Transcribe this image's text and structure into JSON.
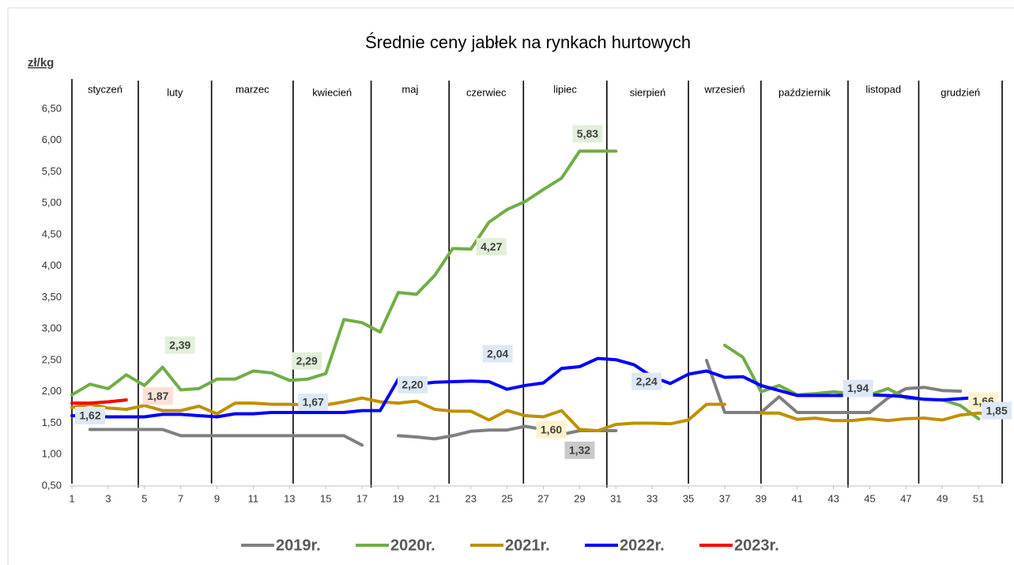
{
  "chart_data": {
    "type": "line",
    "title": "Średnie ceny jabłek na rynkach hurtowych",
    "y_label": "zł/kg",
    "months": [
      "styczeń",
      "luty",
      "marzec",
      "kwiecień",
      "maj",
      "czerwiec",
      "lipiec",
      "sierpień",
      "wrzesień",
      "październik",
      "listopad",
      "grudzień"
    ],
    "x": [
      1,
      2,
      3,
      4,
      5,
      6,
      7,
      8,
      9,
      10,
      11,
      12,
      13,
      14,
      15,
      16,
      17,
      18,
      19,
      20,
      21,
      22,
      23,
      24,
      25,
      26,
      27,
      28,
      29,
      30,
      31,
      32,
      33,
      34,
      35,
      36,
      37,
      38,
      39,
      40,
      41,
      42,
      43,
      44,
      45,
      46,
      47,
      48,
      49,
      50,
      51,
      52
    ],
    "xlim": [
      1,
      52.3
    ],
    "xticks": [
      1,
      3,
      5,
      7,
      9,
      11,
      13,
      15,
      17,
      19,
      21,
      23,
      25,
      27,
      29,
      31,
      33,
      35,
      37,
      39,
      41,
      43,
      45,
      47,
      49,
      51
    ],
    "ylim": [
      0.5,
      6.5
    ],
    "yticks": [
      {
        "value": 0.5,
        "label": "0,50"
      },
      {
        "value": 1,
        "label": "1,00"
      },
      {
        "value": 1.5,
        "label": "1,50"
      },
      {
        "value": 2,
        "label": "2,00"
      },
      {
        "value": 2.5,
        "label": "2,50"
      },
      {
        "value": 3,
        "label": "3,00"
      },
      {
        "value": 3.5,
        "label": "3,50"
      },
      {
        "value": 4,
        "label": "4,00"
      },
      {
        "value": 4.5,
        "label": "4,50"
      },
      {
        "value": 5,
        "label": "5,00"
      },
      {
        "value": 5.5,
        "label": "5,50"
      },
      {
        "value": 6,
        "label": "6,00"
      },
      {
        "value": 6.5,
        "label": "6,50"
      }
    ],
    "legend": "bottom",
    "series": [
      {
        "name": "2019r.",
        "color": "#7f7f7f",
        "label_color": "#c9c9c9",
        "values": [
          null,
          1.4,
          1.4,
          1.4,
          1.4,
          1.4,
          1.3,
          1.3,
          1.3,
          1.3,
          1.3,
          1.3,
          1.3,
          1.3,
          1.3,
          1.3,
          1.15,
          null,
          1.3,
          1.28,
          1.25,
          1.3,
          1.37,
          1.39,
          1.39,
          1.45,
          1.4,
          1.32,
          1.38,
          1.38,
          1.38,
          null,
          null,
          null,
          null,
          2.5,
          1.67,
          1.67,
          1.67,
          1.92,
          1.67,
          1.67,
          1.67,
          1.67,
          1.67,
          1.9,
          2.05,
          2.07,
          2.02,
          2.01,
          null,
          null
        ],
        "value_labels": [
          null,
          null,
          null,
          null,
          null,
          null,
          null,
          null,
          null,
          null,
          null,
          null,
          null,
          null,
          null,
          null,
          null,
          null,
          null,
          null,
          null,
          null,
          null,
          null,
          null,
          null,
          null,
          "1,32",
          null,
          null,
          null,
          null,
          null,
          null,
          null,
          null,
          null,
          null,
          null,
          null,
          null,
          null,
          null,
          null,
          null,
          null,
          null,
          null,
          null,
          null,
          null,
          null
        ]
      },
      {
        "name": "2020r.",
        "color": "#70ad47",
        "label_color": "#e2efda",
        "values": [
          1.95,
          2.12,
          2.05,
          2.27,
          2.1,
          2.39,
          2.03,
          2.05,
          2.2,
          2.2,
          2.33,
          2.3,
          2.18,
          2.2,
          2.29,
          3.15,
          3.1,
          2.95,
          3.58,
          3.55,
          3.85,
          4.28,
          4.27,
          4.7,
          4.9,
          5.03,
          5.22,
          5.4,
          5.83,
          5.83,
          5.83,
          null,
          null,
          null,
          null,
          null,
          2.74,
          2.55,
          2.0,
          2.1,
          1.95,
          1.97,
          2.0,
          1.97,
          1.95,
          2.05,
          1.9,
          1.88,
          1.87,
          1.78,
          1.57,
          null
        ],
        "value_labels": [
          null,
          null,
          null,
          null,
          null,
          "2,39",
          null,
          null,
          null,
          null,
          null,
          null,
          null,
          null,
          "2,29",
          null,
          null,
          null,
          null,
          null,
          null,
          null,
          "4,27",
          null,
          null,
          null,
          null,
          null,
          "5,83",
          null,
          null,
          null,
          null,
          null,
          null,
          null,
          null,
          null,
          null,
          null,
          null,
          null,
          null,
          null,
          null,
          null,
          null,
          null,
          null,
          null,
          null,
          null
        ]
      },
      {
        "name": "2021r.",
        "color": "#bf9000",
        "label_color": "#fff2cc",
        "values": [
          1.75,
          1.8,
          1.74,
          1.72,
          1.78,
          1.7,
          1.7,
          1.77,
          1.65,
          1.82,
          1.82,
          1.8,
          1.8,
          1.79,
          1.79,
          1.84,
          1.9,
          1.84,
          1.82,
          1.85,
          1.72,
          1.69,
          1.69,
          1.55,
          1.7,
          1.62,
          1.6,
          1.7,
          1.4,
          1.38,
          1.48,
          1.5,
          1.5,
          1.49,
          1.55,
          1.8,
          1.8,
          null,
          1.66,
          1.66,
          1.56,
          1.58,
          1.54,
          1.54,
          1.57,
          1.54,
          1.57,
          1.58,
          1.55,
          1.63,
          1.66,
          1.66
        ],
        "value_labels": [
          null,
          null,
          null,
          null,
          null,
          null,
          null,
          null,
          null,
          null,
          null,
          null,
          null,
          null,
          null,
          null,
          null,
          null,
          null,
          null,
          null,
          null,
          null,
          null,
          null,
          null,
          "1,60",
          null,
          null,
          null,
          null,
          null,
          null,
          null,
          null,
          null,
          null,
          null,
          null,
          null,
          null,
          null,
          null,
          null,
          null,
          null,
          null,
          null,
          null,
          null,
          "1,66",
          null
        ]
      },
      {
        "name": "2022r.",
        "color": "#0000ff",
        "label_color": "#dde8f5",
        "values": [
          1.62,
          1.6,
          1.6,
          1.6,
          1.6,
          1.64,
          1.64,
          1.62,
          1.6,
          1.65,
          1.65,
          1.67,
          1.67,
          1.67,
          1.67,
          1.67,
          1.7,
          1.7,
          2.2,
          2.12,
          2.15,
          2.16,
          2.17,
          2.16,
          2.04,
          2.1,
          2.14,
          2.37,
          2.4,
          2.53,
          2.51,
          2.43,
          2.24,
          2.13,
          2.28,
          2.33,
          2.23,
          2.24,
          2.1,
          2.02,
          1.94,
          1.94,
          1.94,
          1.94,
          1.95,
          1.94,
          1.92,
          1.88,
          1.87,
          1.89,
          1.91,
          1.85
        ],
        "value_labels": [
          "1,62",
          null,
          null,
          null,
          null,
          null,
          null,
          null,
          null,
          null,
          null,
          null,
          null,
          null,
          "1,67",
          null,
          null,
          null,
          "2,20",
          null,
          null,
          null,
          null,
          null,
          "2,04",
          null,
          null,
          null,
          null,
          null,
          null,
          null,
          "2,24",
          null,
          null,
          null,
          null,
          null,
          null,
          null,
          null,
          null,
          "1,94",
          null,
          null,
          null,
          null,
          null,
          null,
          null,
          null,
          "1,85"
        ]
      },
      {
        "name": "2023r.",
        "color": "#ff0000",
        "label_color": "#fbe0d8",
        "values": [
          1.82,
          1.82,
          1.84,
          1.87,
          null,
          null,
          null,
          null,
          null,
          null,
          null,
          null,
          null,
          null,
          null,
          null,
          null,
          null,
          null,
          null,
          null,
          null,
          null,
          null,
          null,
          null,
          null,
          null,
          null,
          null,
          null,
          null,
          null,
          null,
          null,
          null,
          null,
          null,
          null,
          null,
          null,
          null,
          null,
          null,
          null,
          null,
          null,
          null,
          null,
          null,
          null,
          null
        ],
        "value_labels": [
          null,
          null,
          null,
          "1,87",
          null,
          null,
          null,
          null,
          null,
          null,
          null,
          null,
          null,
          null,
          null,
          null,
          null,
          null,
          null,
          null,
          null,
          null,
          null,
          null,
          null,
          null,
          null,
          null,
          null,
          null,
          null,
          null,
          null,
          null,
          null,
          null,
          null,
          null,
          null,
          null,
          null,
          null,
          null,
          null,
          null,
          null,
          null,
          null,
          null,
          null,
          null,
          null
        ]
      }
    ]
  }
}
